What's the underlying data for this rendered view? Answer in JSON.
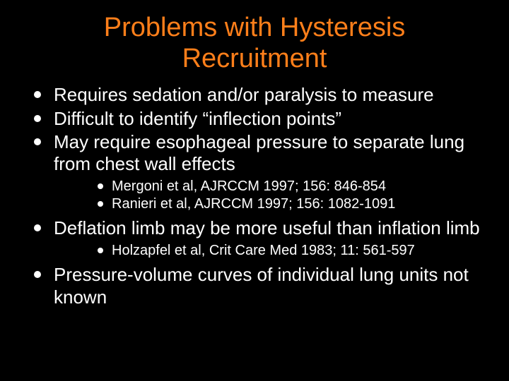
{
  "colors": {
    "background": "#000000",
    "title": "#ff7f1a",
    "body_text": "#ffffff",
    "bullet": "#ffffff"
  },
  "typography": {
    "title_fontsize": 38,
    "body_fontsize": 26,
    "sub_fontsize": 20,
    "font_family": "Arial"
  },
  "title": "Problems with Hysteresis Recruitment",
  "bullets": [
    {
      "text": "Requires sedation and/or paralysis to measure"
    },
    {
      "text": "Difficult to identify “inflection points”"
    },
    {
      "text": "May require esophageal pressure to separate lung from chest wall effects",
      "sub": [
        "Mergoni et al, AJRCCM 1997; 156: 846-854",
        "Ranieri et al, AJRCCM 1997; 156: 1082-1091"
      ]
    },
    {
      "text": "Deflation limb may be more useful than inflation limb",
      "sub": [
        "Holzapfel et al, Crit Care Med 1983; 11: 561-597"
      ]
    },
    {
      "text": "Pressure-volume curves of individual lung units not known"
    }
  ]
}
